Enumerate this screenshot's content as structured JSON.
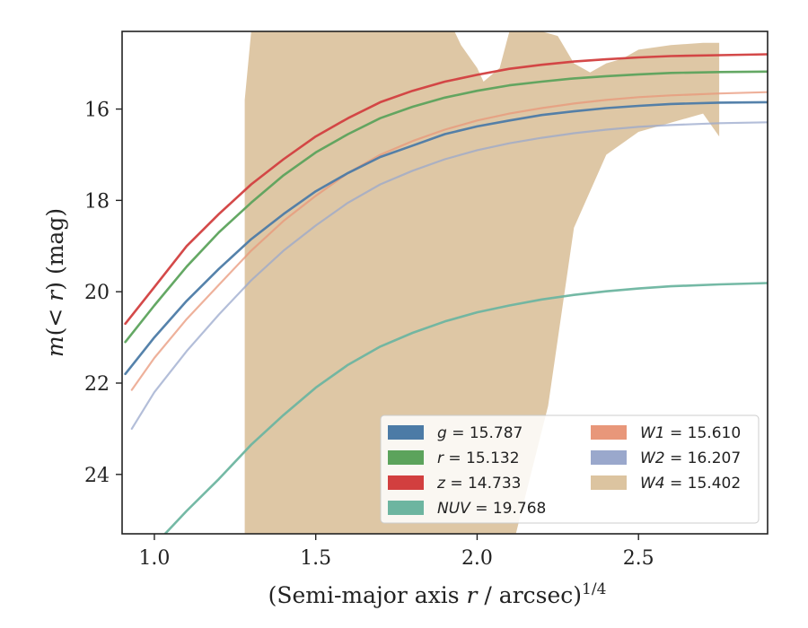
{
  "chart_data": {
    "type": "line",
    "xlabel_main": "(Semi-major axis ",
    "xlabel_var": "r",
    "xlabel_tail": " / arcsec)",
    "xlabel_sup": "1/4",
    "ylabel_m": "m",
    "ylabel_paren": "(< ",
    "ylabel_r": "r",
    "ylabel_tail": ") (mag)",
    "xlim": [
      0.9,
      2.9
    ],
    "ylim": [
      25.3,
      14.3
    ],
    "y_inverted": true,
    "xticks": [
      "1.0",
      "1.5",
      "2.0",
      "2.5"
    ],
    "xtick_values": [
      1.0,
      1.5,
      2.0,
      2.5
    ],
    "yticks": [
      "16",
      "18",
      "20",
      "22",
      "24"
    ],
    "ytick_values": [
      16,
      18,
      20,
      22,
      24
    ],
    "grid": false,
    "legend_position": "lower-right",
    "series": [
      {
        "name": "g = 15.787",
        "label_var": "g",
        "label_val": "15.787",
        "color": "#4c7ba6",
        "x": [
          0.91,
          1.0,
          1.1,
          1.2,
          1.3,
          1.4,
          1.5,
          1.6,
          1.7,
          1.8,
          1.9,
          2.0,
          2.1,
          2.2,
          2.3,
          2.4,
          2.5,
          2.6,
          2.75,
          2.9
        ],
        "y": [
          21.8,
          21.0,
          20.2,
          19.5,
          18.85,
          18.3,
          17.8,
          17.4,
          17.05,
          16.8,
          16.55,
          16.38,
          16.25,
          16.13,
          16.05,
          15.98,
          15.93,
          15.89,
          15.86,
          15.85
        ]
      },
      {
        "name": "r = 15.132",
        "label_var": "r",
        "label_val": "15.132",
        "color": "#5ca35c",
        "x": [
          0.91,
          1.0,
          1.1,
          1.2,
          1.3,
          1.4,
          1.5,
          1.6,
          1.7,
          1.8,
          1.9,
          2.0,
          2.1,
          2.2,
          2.3,
          2.4,
          2.5,
          2.6,
          2.75,
          2.9
        ],
        "y": [
          21.1,
          20.3,
          19.45,
          18.7,
          18.05,
          17.45,
          16.95,
          16.55,
          16.2,
          15.95,
          15.75,
          15.6,
          15.48,
          15.4,
          15.33,
          15.28,
          15.24,
          15.21,
          15.19,
          15.18
        ]
      },
      {
        "name": "z = 14.733",
        "label_var": "z",
        "label_val": "14.733",
        "color": "#d23f3f",
        "x": [
          0.91,
          1.0,
          1.1,
          1.2,
          1.3,
          1.4,
          1.5,
          1.6,
          1.7,
          1.8,
          1.9,
          2.0,
          2.1,
          2.2,
          2.3,
          2.4,
          2.5,
          2.6,
          2.75,
          2.9
        ],
        "y": [
          20.7,
          19.9,
          19.0,
          18.3,
          17.65,
          17.1,
          16.6,
          16.2,
          15.85,
          15.6,
          15.4,
          15.25,
          15.12,
          15.03,
          14.96,
          14.91,
          14.87,
          14.84,
          14.82,
          14.8
        ]
      },
      {
        "name": "NUV = 19.768",
        "label_var": "NUV",
        "label_val": "19.768",
        "color": "#6db5a0",
        "x": [
          1.02,
          1.1,
          1.2,
          1.3,
          1.4,
          1.5,
          1.6,
          1.7,
          1.8,
          1.9,
          2.0,
          2.1,
          2.2,
          2.3,
          2.4,
          2.5,
          2.6,
          2.75,
          2.9
        ],
        "y": [
          25.4,
          24.8,
          24.1,
          23.35,
          22.7,
          22.1,
          21.6,
          21.2,
          20.9,
          20.65,
          20.45,
          20.3,
          20.17,
          20.07,
          19.99,
          19.93,
          19.88,
          19.84,
          19.81
        ]
      },
      {
        "name": "W1 = 15.610",
        "label_var": "W1",
        "label_val": "15.610",
        "color": "#e8977a",
        "x": [
          0.93,
          1.0,
          1.1,
          1.2,
          1.3,
          1.4,
          1.5,
          1.6,
          1.7,
          1.8,
          1.9,
          2.0,
          2.1,
          2.2,
          2.3,
          2.4,
          2.5,
          2.6,
          2.75,
          2.9
        ],
        "y": [
          22.15,
          21.45,
          20.6,
          19.85,
          19.1,
          18.45,
          17.9,
          17.4,
          17.0,
          16.7,
          16.45,
          16.25,
          16.1,
          15.98,
          15.88,
          15.8,
          15.74,
          15.7,
          15.66,
          15.63
        ]
      },
      {
        "name": "W2 = 16.207",
        "label_var": "W2",
        "label_val": "16.207",
        "color": "#9aa8cc",
        "x": [
          0.93,
          1.0,
          1.1,
          1.2,
          1.3,
          1.4,
          1.5,
          1.6,
          1.7,
          1.8,
          1.9,
          2.0,
          2.1,
          2.2,
          2.3,
          2.4,
          2.5,
          2.6,
          2.75,
          2.9
        ],
        "y": [
          23.0,
          22.2,
          21.3,
          20.5,
          19.75,
          19.1,
          18.55,
          18.05,
          17.65,
          17.35,
          17.1,
          16.9,
          16.75,
          16.63,
          16.53,
          16.45,
          16.39,
          16.35,
          16.31,
          16.29
        ]
      },
      {
        "name": "W4 = 15.402",
        "label_var": "W4",
        "label_val": "15.402",
        "color": "#dcc4a0"
      }
    ],
    "w4_band_x": [
      1.28,
      1.28,
      1.3,
      1.92,
      1.93,
      1.95,
      2.0,
      2.02,
      2.07,
      2.1,
      2.12,
      2.2,
      2.25,
      2.3,
      2.35,
      2.4,
      2.45,
      2.5,
      2.6,
      2.7,
      2.75,
      2.75,
      2.7,
      2.6,
      2.5,
      2.4,
      2.3,
      2.22,
      2.12,
      2.07,
      2.02,
      2.0,
      1.95,
      1.92,
      1.3
    ],
    "w4_band_y": [
      25.3,
      15.8,
      14.3,
      14.3,
      14.3,
      14.6,
      15.1,
      15.4,
      15.1,
      14.3,
      14.3,
      14.3,
      14.4,
      15.0,
      15.2,
      15.0,
      14.9,
      14.7,
      14.6,
      14.55,
      14.55,
      16.6,
      16.1,
      16.3,
      16.5,
      17.0,
      18.6,
      22.5,
      25.3,
      25.3,
      25.3,
      25.3,
      25.3,
      25.3,
      25.3
    ]
  }
}
